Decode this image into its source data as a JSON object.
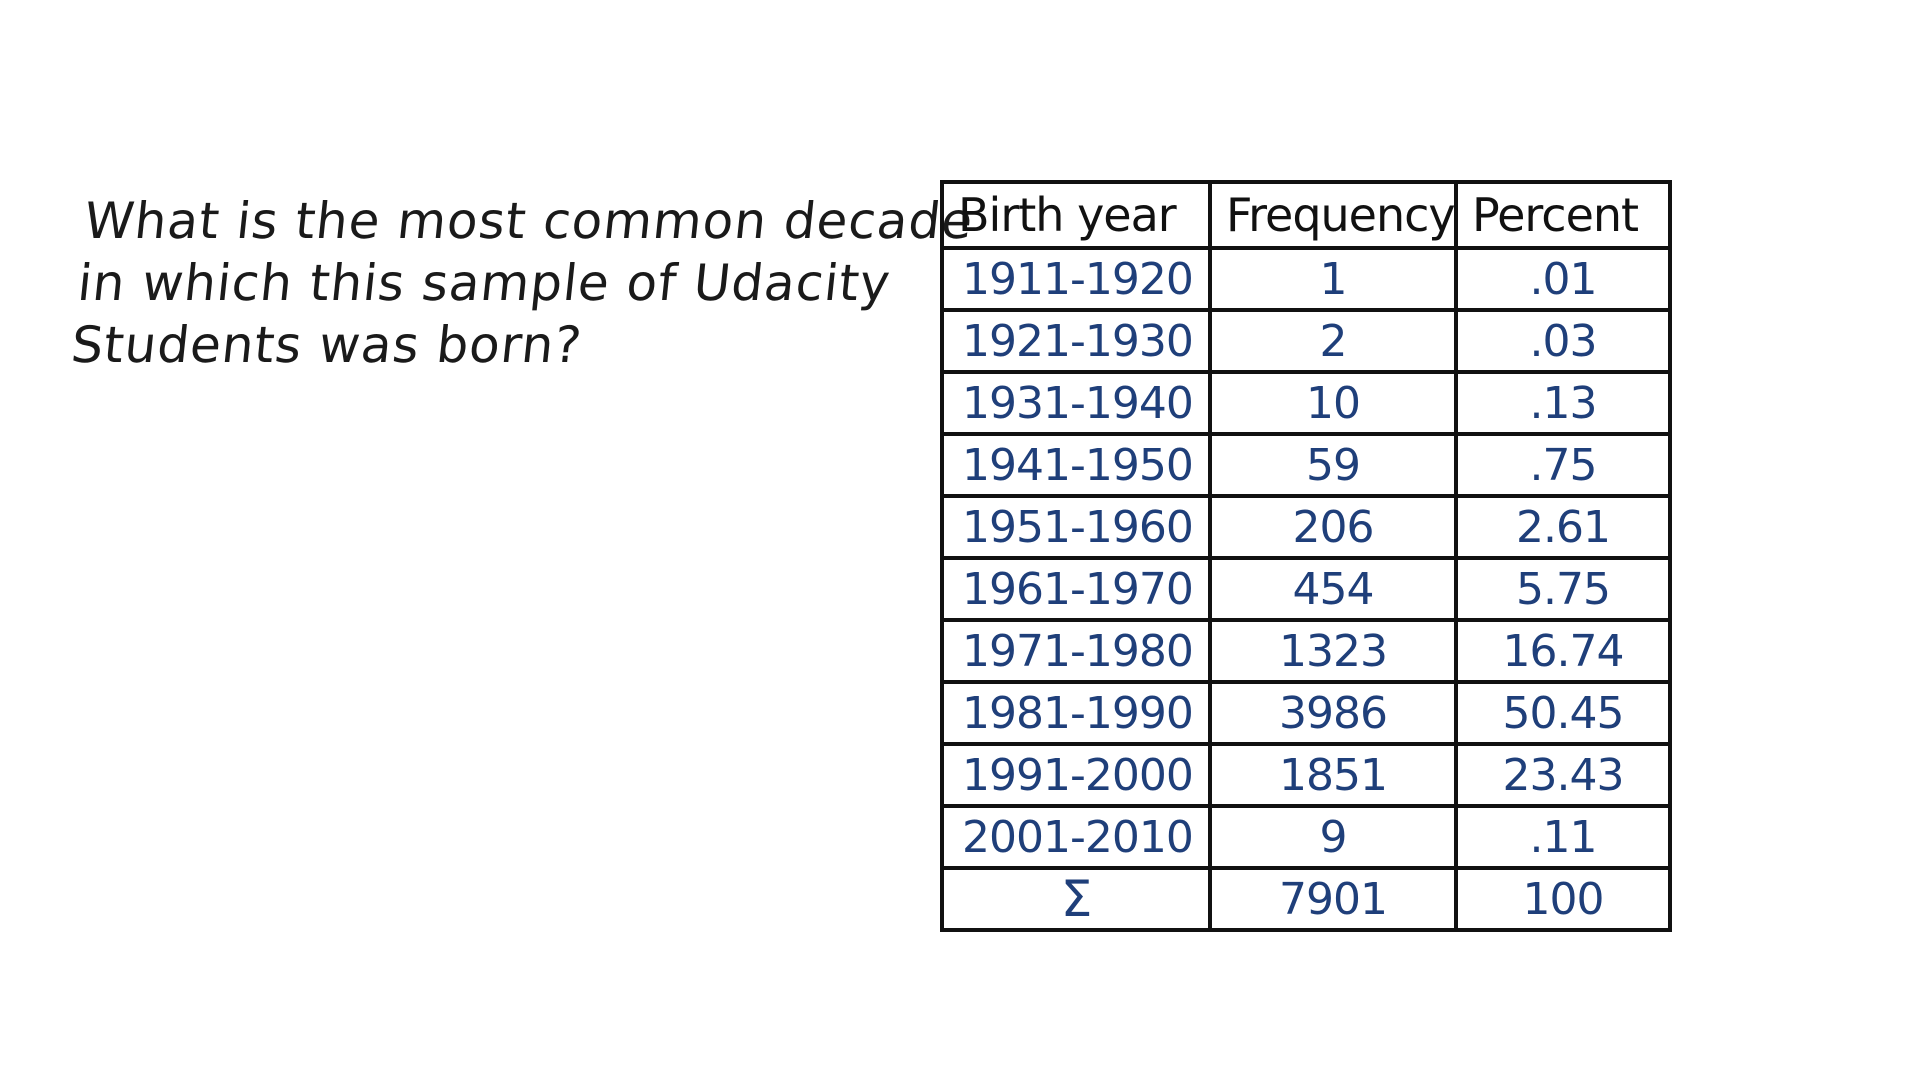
{
  "question": {
    "line1": "What is the most common decade",
    "line2": "in which this sample of Udacity",
    "line3": "Students was born?"
  },
  "table": {
    "headers": [
      "Birth year",
      "Frequency",
      "Percent"
    ],
    "rows": [
      {
        "year": "1911-1920",
        "frequency": "1",
        "percent": ".01"
      },
      {
        "year": "1921-1930",
        "frequency": "2",
        "percent": ".03"
      },
      {
        "year": "1931-1940",
        "frequency": "10",
        "percent": ".13"
      },
      {
        "year": "1941-1950",
        "frequency": "59",
        "percent": ".75"
      },
      {
        "year": "1951-1960",
        "frequency": "206",
        "percent": "2.61"
      },
      {
        "year": "1961-1970",
        "frequency": "454",
        "percent": "5.75"
      },
      {
        "year": "1971-1980",
        "frequency": "1323",
        "percent": "16.74"
      },
      {
        "year": "1981-1990",
        "frequency": "3986",
        "percent": "50.45"
      },
      {
        "year": "1991-2000",
        "frequency": "1851",
        "percent": "23.43"
      },
      {
        "year": "2001-2010",
        "frequency": "9",
        "percent": ".11"
      }
    ],
    "total": {
      "symbol": "Σ",
      "frequency": "7901",
      "percent": "100"
    }
  },
  "colors": {
    "ink_black": "#111111",
    "ink_blue": "#1f3f7a"
  }
}
